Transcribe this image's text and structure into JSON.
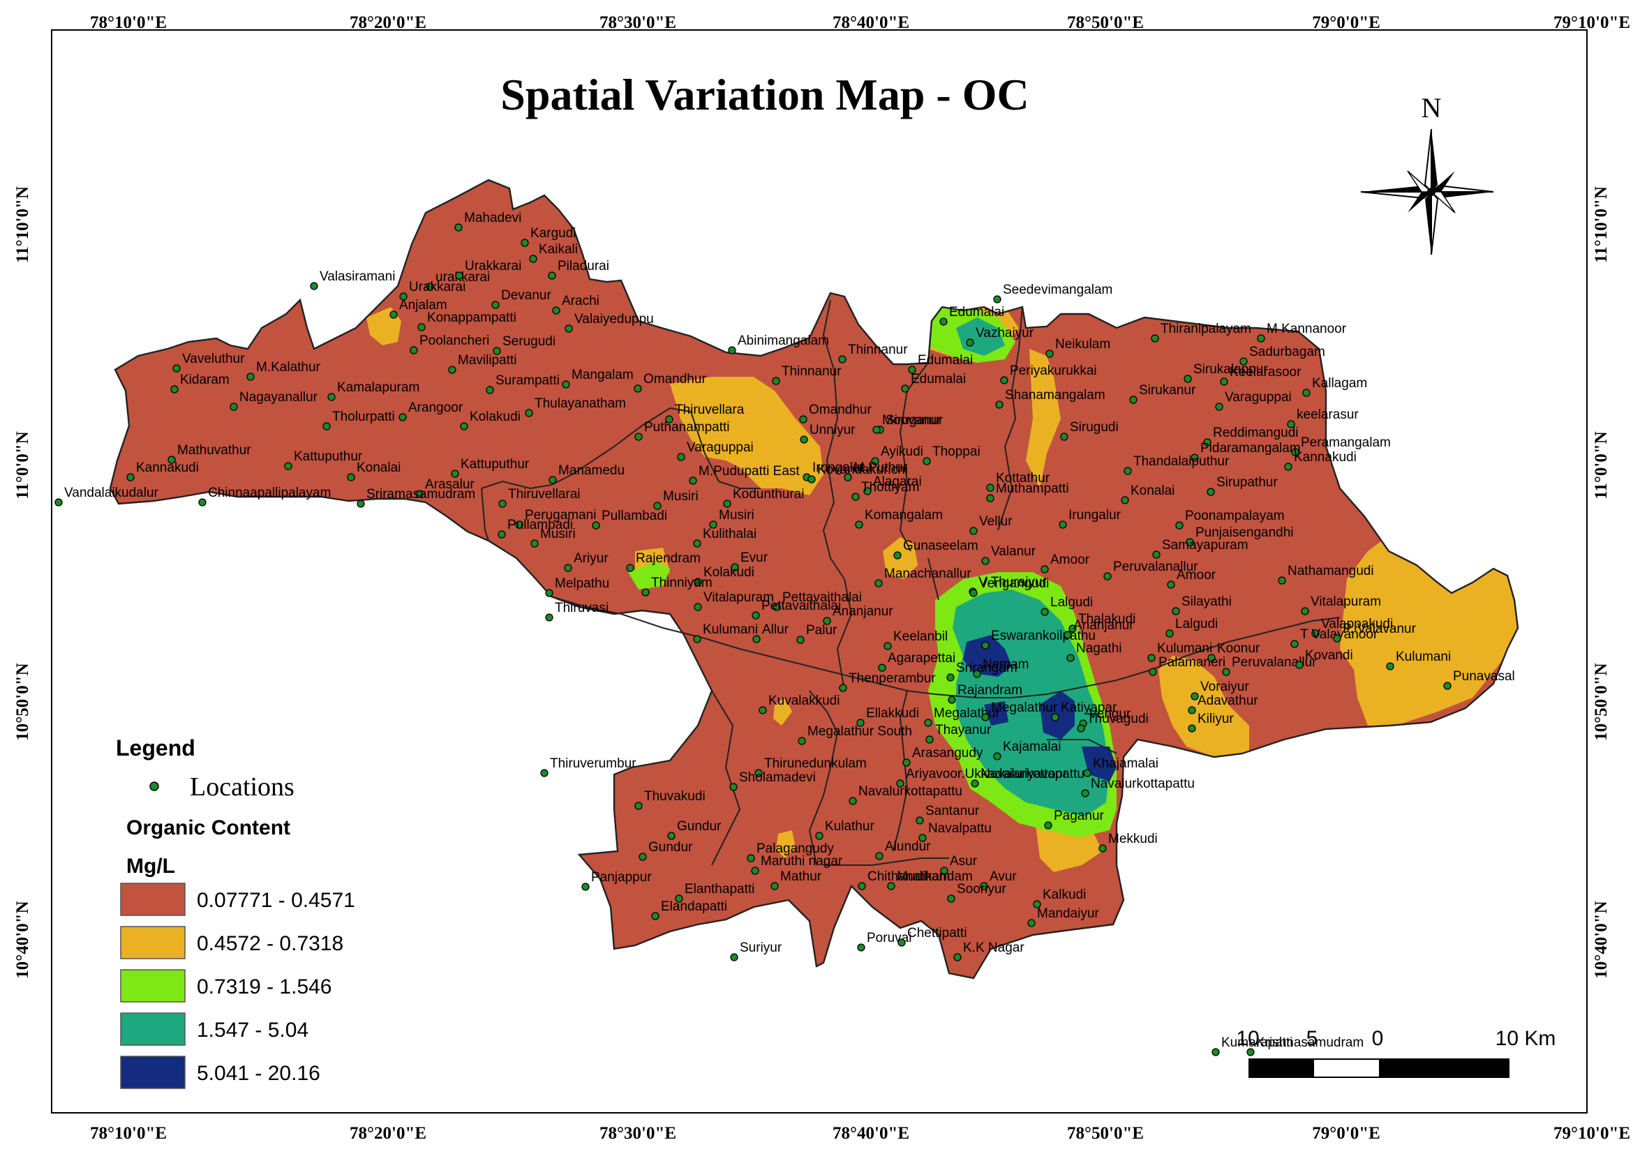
{
  "title": "Spatial Variation Map - OC",
  "north_label": "N",
  "colors": {
    "c1": "#c1533f",
    "c2": "#eab123",
    "c3": "#7de813",
    "c4": "#1ea87f",
    "c5": "#132c80",
    "point": "#1b8a2a",
    "boundary": "#222222"
  },
  "graticule": {
    "top_labels": [
      "78°10'0\"E",
      "78°20'0\"E",
      "78°30'0\"E",
      "78°40'0\"E",
      "78°50'0\"E",
      "79°0'0\"E",
      "79°10'0\"E"
    ],
    "bottom_labels": [
      "78°10'0\"E",
      "78°20'0\"E",
      "78°30'0\"E",
      "78°40'0\"E",
      "78°50'0\"E",
      "79°0'0\"E",
      "79°10'0\"E"
    ],
    "left_labels": [
      "11°10'0\"N",
      "11°0'0\"N",
      "10°50'0\"N",
      "10°40'0\"N"
    ],
    "right_labels": [
      "11°10'0\"N",
      "11°0'0\"N",
      "10°50'0\"N",
      "10°40'0\"N"
    ]
  },
  "legend": {
    "heading": "Legend",
    "locations_label": "Locations",
    "variable": "Organic Content",
    "unit": "Mg/L",
    "classes": [
      {
        "label": "0.07771 - 0.4571",
        "color": "#c1533f"
      },
      {
        "label": "0.4572 - 0.7318",
        "color": "#eab123"
      },
      {
        "label": "0.7319 - 1.546",
        "color": "#7de813"
      },
      {
        "label": "1.547 - 5.04",
        "color": "#1ea87f"
      },
      {
        "label": "5.041 - 20.16",
        "color": "#132c80"
      }
    ]
  },
  "scale_bar": {
    "labels": [
      "10",
      "5",
      "0",
      "10 Km"
    ]
  },
  "places": [
    "Mahadevi",
    "Kargudi",
    "urakkarai",
    "Kaikali",
    "Urakkarai",
    "Piladurai",
    "Valasiramani",
    "Urakkarai",
    "Arachi",
    "Devanur",
    "Anjalam",
    "Konappampatti",
    "Valaiyeduppu",
    "Seedevimangalam",
    "Edumalai",
    "Vazhaiyur",
    "Thiranipalayam",
    "M Kannanoor",
    "Neikulam",
    "Sadurbagam",
    "Abinimangalam",
    "Thinnanur",
    "Poolancheri",
    "Serugudi",
    "Vaveluthur",
    "Mavilipatti",
    "Edumalai",
    "Periyakurukkai",
    "Sirukalappur",
    "Keelarasoor",
    "M.Kalathur",
    "Mangalam",
    "Omandhur",
    "Thinnanur",
    "Edumalai",
    "Kidaram",
    "Nagayanallur",
    "Surampatti",
    "Sirukanur",
    "Kallagam",
    "Kamalapuram",
    "Thulayanatham",
    "Shanamangalam",
    "Varaguppai",
    "Arangoor",
    "Tholurpatti",
    "Kolakudi",
    "Thiruvellara",
    "Omandhur",
    "Puthanampatti",
    "Siruganur",
    "keelarasur",
    "Unniyur",
    "Moovanur",
    "Sirugudi",
    "Reddimangudi",
    "Varaguppai",
    "Peramangalam",
    "Mathuvathur",
    "Pidaramangalam",
    "Thoppai",
    "Ayikudi",
    "Irungalur",
    "Kattuputhur",
    "M.Puthur",
    "Thandalaiputhur",
    "Kannakudi",
    "Kannakudi",
    "Kattuputhur",
    "Alagarai",
    "Sirupathur",
    "Kovandakurichi",
    "Kottathur",
    "Konalai",
    "Arasalur",
    "Manamedu",
    "M.Pudupatti East",
    "Muthampatti",
    "Konalai",
    "Vandalaikudalur",
    "Chinnaapallipalayam",
    "Sriramasamudram",
    "Thottiyam",
    "Thiruvellarai",
    "Musiri",
    "Kodunthurai",
    "Perugamani",
    "Musiri",
    "Komangalam",
    "Poonampalayam",
    "Pullambadi",
    "Vellur",
    "Irungalur",
    "Punjaisengandhi",
    "Pullambadi",
    "Musiri",
    "Kulithalai",
    "Gunaseelam",
    "Samayapuram",
    "Valanur",
    "Ariyur",
    "Rajendram",
    "Evur",
    "Amoor",
    "Peruvalanallur",
    "Kolakudi",
    "Manachanallur",
    "V Thuraiyur",
    "Nathamangudi",
    "Amoor",
    "Melpathu",
    "Thinniyam",
    "Vitalapuram",
    "Pettavaithalai",
    "Vengangudi",
    "Silayathi",
    "Thiruvasi",
    "Lalgudi",
    "Vitalapuram",
    "Pettavaithalai",
    "Ananjanur",
    "Thalakudi",
    "Lalgudi",
    "Valappakudi",
    "Kulumani",
    "Allur",
    "Palur",
    "Keelanbil",
    "Eswarankoilpathu",
    "Ananjanur",
    "T Valayanoor",
    "P. Valavanur",
    "Nagathi",
    "Koonur",
    "Agarapettai",
    "Nemam",
    "Kulumani",
    "Peruvalanallur",
    "Srirangam",
    "Kovandi",
    "Palamaneri",
    "Kulumani",
    "Punavasal",
    "Thenperambur",
    "Rajandram",
    "Voraiyur",
    "Kuvalakkudi",
    "Megalathur",
    "Adavathur",
    "Ellakkudi",
    "Megalathur",
    "Katiyapar",
    "Vengur",
    "Kiliyur",
    "Megalathur South",
    "Thayanur",
    "Thuvagudi",
    "Arasangudy",
    "Kajamalai",
    "Thiruverumbur",
    "Ariyavoor.Ukkadaiariyavoor",
    "Khajamalai",
    "Thirunedunkulam",
    "Navalurkottapattu",
    "Sholamadevi",
    "Navalurkottapattu",
    "Thuvakudi",
    "Navalurkottapattu",
    "Santanur",
    "Gundur",
    "Navalpattu",
    "Paganur",
    "Gundur",
    "Palagangudy",
    "Kulathur",
    "Alundur",
    "Mekkudi",
    "Maruthi nagar",
    "Asur",
    "Panjappur",
    "Mathur",
    "Chithanatham",
    "Mudikandam",
    "Avur",
    "Elanthapatti",
    "Sooriyur",
    "Kalkudi",
    "Elandapatti",
    "Mandaiyur",
    "Poruvai",
    "Chettipatti",
    "Suriyur",
    "K.K Nagar",
    "Kumarapatti",
    "Krishnasamudram"
  ]
}
